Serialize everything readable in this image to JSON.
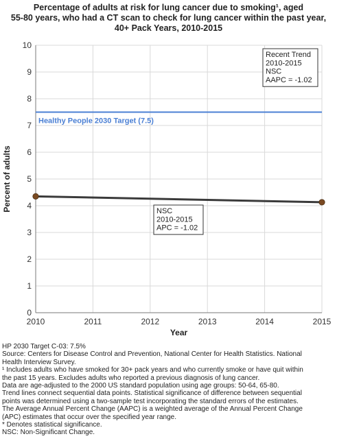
{
  "chart_data": {
    "type": "line",
    "title_lines": [
      "Percentage of adults at risk for lung cancer due to smoking¹, aged",
      "55-80 years, who had a CT scan to check for lung cancer within the past year,",
      "40+ Pack Years,  2010-2015"
    ],
    "xlabel": "Year",
    "ylabel": "Percent of adults",
    "xlim": [
      2010,
      2015
    ],
    "ylim": [
      0,
      10
    ],
    "x_ticks": [
      2010,
      2011,
      2012,
      2013,
      2014,
      2015
    ],
    "y_ticks": [
      0,
      1,
      2,
      3,
      4,
      5,
      6,
      7,
      8,
      9,
      10
    ],
    "grid": true,
    "series": [
      {
        "x": [
          2010,
          2015
        ],
        "values": [
          4.35,
          4.13
        ],
        "color": "#3a3a3a",
        "marker_color": "#7a4a22"
      }
    ],
    "target": {
      "value": 7.5,
      "label": "Healthy People 2030 Target (7.5)",
      "color": "#4a7fd4"
    },
    "trend_box": {
      "lines": [
        "Recent Trend",
        "2010-2015",
        "NSC",
        "AAPC = -1.02"
      ]
    },
    "segment_box": {
      "lines": [
        "NSC",
        "2010-2015",
        "APC = -1.02"
      ]
    }
  },
  "footnotes": [
    "HP 2030 Target C-03: 7.5%",
    "Source: Centers for Disease Control and Prevention, National Center for Health Statistics. National",
    "Health Interview Survey.",
    "¹ Includes adults who have smoked for 30+ pack years and who currently smoke or have quit within",
    "the past 15 years. Excludes adults who reported a previous diagnosis of lung cancer.",
    "Data are age-adjusted to the 2000 US standard population using age groups: 50-64, 65-80.",
    "Trend lines connect sequential data points. Statistical significance of difference between sequential",
    "points was determined using a two-sample test incorporating the standard errors of the estimates.",
    "The Average Annual Percent Change (AAPC) is a weighted average of the Annual Percent Change",
    "(APC) estimates that occur over the specified year range.",
    "* Denotes statistical significance.",
    "NSC: Non-Significant Change."
  ]
}
